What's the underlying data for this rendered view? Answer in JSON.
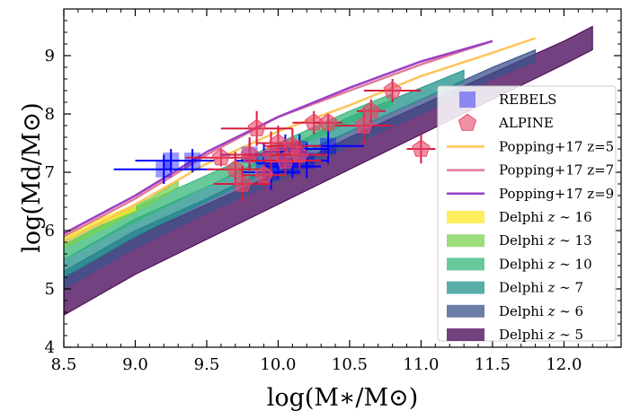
{
  "chart_data": {
    "type": "scatter",
    "title": "",
    "xlabel": "log(M∗/M⊙)",
    "ylabel": "log(Md/M⊙)",
    "xlim": [
      8.5,
      12.4
    ],
    "ylim": [
      4.0,
      9.8
    ],
    "xticks": [
      8.5,
      9.0,
      9.5,
      10.0,
      10.5,
      11.0,
      11.5,
      12.0
    ],
    "xtick_labels": [
      "8.5",
      "9.0",
      "9.5",
      "10.0",
      "10.5",
      "11.0",
      "11.5",
      "12.0"
    ],
    "yticks": [
      4,
      5,
      6,
      7,
      8,
      9
    ],
    "ytick_labels": [
      "4",
      "5",
      "6",
      "7",
      "8",
      "9"
    ],
    "legend_position": "lower-right",
    "bands": [
      {
        "name": "Delphi z ~ 5",
        "label_prefix": "Delphi ",
        "label_z": "z",
        "label_suffix": " ∼ 5",
        "color": "#440154",
        "x": [
          8.5,
          9.0,
          9.5,
          10.0,
          10.5,
          11.0,
          11.5,
          12.0,
          12.2
        ],
        "lower": [
          4.55,
          5.25,
          5.85,
          6.45,
          7.05,
          7.65,
          8.25,
          8.85,
          9.1
        ],
        "upper": [
          5.2,
          5.9,
          6.45,
          7.0,
          7.6,
          8.15,
          8.7,
          9.25,
          9.5
        ]
      },
      {
        "name": "Delphi z ~ 6",
        "label_prefix": "Delphi ",
        "label_z": "z",
        "label_suffix": " ∼ 6",
        "color": "#3b528b",
        "x": [
          8.5,
          9.0,
          9.5,
          10.0,
          10.5,
          11.0,
          11.5,
          11.8
        ],
        "lower": [
          5.0,
          5.7,
          6.3,
          6.85,
          7.45,
          8.0,
          8.6,
          8.9
        ],
        "upper": [
          5.3,
          6.0,
          6.55,
          7.15,
          7.7,
          8.25,
          8.8,
          9.1
        ]
      },
      {
        "name": "Delphi z ~ 7",
        "label_prefix": "Delphi ",
        "label_z": "z",
        "label_suffix": " ∼ 7",
        "color": "#21918c",
        "x": [
          8.5,
          9.0,
          9.5,
          10.0,
          10.5,
          11.0,
          11.3
        ],
        "lower": [
          5.2,
          5.9,
          6.5,
          7.1,
          7.7,
          8.25,
          8.55
        ],
        "upper": [
          5.5,
          6.2,
          6.75,
          7.35,
          7.95,
          8.45,
          8.75
        ]
      },
      {
        "name": "Delphi z ~ 10",
        "label_prefix": "Delphi ",
        "label_z": "z",
        "label_suffix": " ∼ 10",
        "color": "#35b779",
        "x": [
          8.5,
          9.0,
          9.5,
          10.0,
          10.5,
          10.8
        ],
        "lower": [
          5.5,
          6.15,
          6.75,
          7.3,
          7.85,
          8.15
        ],
        "upper": [
          5.75,
          6.4,
          6.95,
          7.5,
          8.05,
          8.35
        ]
      },
      {
        "name": "Delphi z ~ 13",
        "label_prefix": "Delphi ",
        "label_z": "z",
        "label_suffix": " ∼ 13",
        "color": "#7ad151",
        "x": [
          8.5,
          8.8,
          9.1,
          9.3
        ],
        "lower": [
          5.7,
          6.05,
          6.45,
          6.75
        ],
        "upper": [
          5.85,
          6.2,
          6.55,
          6.85
        ]
      },
      {
        "name": "Delphi z ~ 16",
        "label_prefix": "Delphi ",
        "label_z": "z",
        "label_suffix": " ∼ 16",
        "color": "#fde725",
        "x": [
          8.5,
          8.8,
          9.0
        ],
        "lower": [
          5.85,
          6.15,
          6.35
        ],
        "upper": [
          5.95,
          6.25,
          6.45
        ]
      }
    ],
    "lines": [
      {
        "name": "Popping+17 z=5",
        "label": "Popping+17 z=5",
        "color": "#fdc45a",
        "x": [
          8.5,
          9.0,
          9.5,
          10.0,
          10.5,
          11.0,
          11.5,
          11.8
        ],
        "y": [
          5.8,
          6.45,
          7.15,
          7.7,
          8.15,
          8.65,
          9.05,
          9.3
        ]
      },
      {
        "name": "Popping+17 z=7",
        "label": "Popping+17 z=7",
        "color": "#e07a9a",
        "x": [
          8.5,
          9.0,
          9.5,
          10.0,
          10.5,
          11.0,
          11.5
        ],
        "y": [
          5.9,
          6.55,
          7.3,
          7.95,
          8.4,
          8.85,
          9.25
        ]
      },
      {
        "name": "Popping+17 z=9",
        "label": "Popping+17 z=9",
        "color": "#9b3fc6",
        "x": [
          8.5,
          9.0,
          9.5,
          10.0,
          10.5,
          11.0,
          11.5
        ],
        "y": [
          5.95,
          6.6,
          7.35,
          7.95,
          8.45,
          8.9,
          9.25
        ]
      }
    ],
    "series": [
      {
        "name": "REBELS",
        "label": "REBELS",
        "marker": "square",
        "color": "#0000ff",
        "points": [
          {
            "x": 9.2,
            "y": 7.05,
            "xerr": 0.35,
            "yerr": 0.25
          },
          {
            "x": 9.25,
            "y": 7.2,
            "xerr": 0.25,
            "yerr": 0.2
          },
          {
            "x": 9.4,
            "y": 7.2,
            "xerr": 0.15,
            "yerr": 0.2
          },
          {
            "x": 9.8,
            "y": 7.3,
            "xerr": 0.2,
            "yerr": 0.25
          },
          {
            "x": 9.9,
            "y": 7.2,
            "xerr": 0.2,
            "yerr": 0.3
          },
          {
            "x": 10.0,
            "y": 7.15,
            "xerr": 0.15,
            "yerr": 0.25
          },
          {
            "x": 10.05,
            "y": 7.35,
            "xerr": 0.15,
            "yerr": 0.3
          },
          {
            "x": 10.1,
            "y": 7.1,
            "xerr": 0.2,
            "yerr": 0.2
          },
          {
            "x": 10.15,
            "y": 7.4,
            "xerr": 0.2,
            "yerr": 0.25
          },
          {
            "x": 10.2,
            "y": 7.2,
            "xerr": 0.15,
            "yerr": 0.3
          },
          {
            "x": 10.35,
            "y": 7.45,
            "xerr": 0.25,
            "yerr": 0.3
          },
          {
            "x": 9.95,
            "y": 7.0,
            "xerr": 0.2,
            "yerr": 0.3
          }
        ]
      },
      {
        "name": "ALPINE",
        "label": "ALPINE",
        "marker": "pentagon",
        "color": "#e8476b",
        "points": [
          {
            "x": 9.6,
            "y": 7.25,
            "xerr": 0.25,
            "yerr": 0.15
          },
          {
            "x": 9.7,
            "y": 7.05,
            "xerr": 0.2,
            "yerr": 0.3
          },
          {
            "x": 9.75,
            "y": 6.8,
            "xerr": 0.2,
            "yerr": 0.3
          },
          {
            "x": 9.8,
            "y": 7.3,
            "xerr": 0.15,
            "yerr": 0.3
          },
          {
            "x": 9.85,
            "y": 7.75,
            "xerr": 0.25,
            "yerr": 0.3
          },
          {
            "x": 9.95,
            "y": 7.3,
            "xerr": 0.2,
            "yerr": 0.4
          },
          {
            "x": 10.0,
            "y": 7.5,
            "xerr": 0.15,
            "yerr": 0.3
          },
          {
            "x": 10.05,
            "y": 7.2,
            "xerr": 0.25,
            "yerr": 0.25
          },
          {
            "x": 10.1,
            "y": 7.45,
            "xerr": 0.2,
            "yerr": 0.3
          },
          {
            "x": 10.15,
            "y": 7.3,
            "xerr": 0.2,
            "yerr": 0.25
          },
          {
            "x": 10.25,
            "y": 7.85,
            "xerr": 0.15,
            "yerr": 0.2
          },
          {
            "x": 10.35,
            "y": 7.85,
            "xerr": 0.1,
            "yerr": 0.15
          },
          {
            "x": 10.6,
            "y": 7.8,
            "xerr": 0.2,
            "yerr": 0.3
          },
          {
            "x": 10.65,
            "y": 8.05,
            "xerr": 0.1,
            "yerr": 0.2
          },
          {
            "x": 10.8,
            "y": 8.4,
            "xerr": 0.2,
            "yerr": 0.2
          },
          {
            "x": 11.0,
            "y": 7.4,
            "xerr": 0.1,
            "yerr": 0.25
          },
          {
            "x": 9.9,
            "y": 6.95,
            "xerr": 0.15,
            "yerr": 0.2
          }
        ]
      }
    ]
  }
}
